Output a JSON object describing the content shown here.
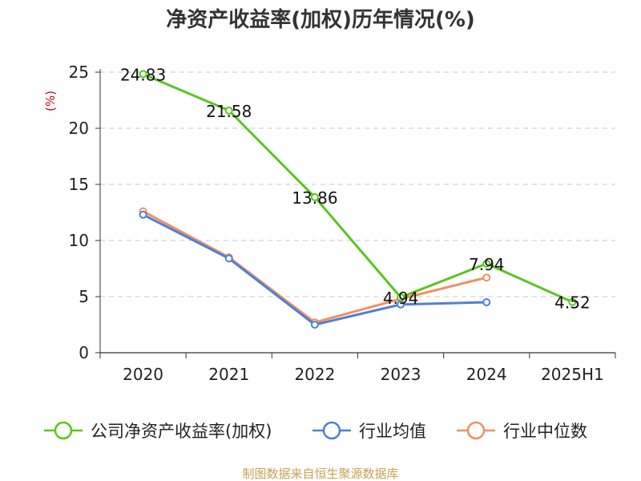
{
  "chart_data": {
    "type": "line",
    "title": "净资产收益率(加权)历年情况(%)",
    "ylabel": "(%)",
    "categories": [
      "2020",
      "2021",
      "2022",
      "2023",
      "2024",
      "2025H1"
    ],
    "ylim": [
      0,
      25
    ],
    "yticks": [
      0,
      5,
      10,
      15,
      20,
      25
    ],
    "grid": true,
    "legend_position": "bottom",
    "series": [
      {
        "name": "公司净资产收益率(加权)",
        "color": "#5cc41e",
        "values": [
          24.83,
          21.58,
          13.86,
          4.94,
          7.94,
          4.52
        ],
        "labels": [
          "24.83",
          "21.58",
          "13.86",
          "4.94",
          "7.94",
          "4.52"
        ]
      },
      {
        "name": "行业均值",
        "color": "#4f7fd8",
        "values": [
          12.3,
          8.4,
          2.5,
          4.3,
          4.5,
          null
        ]
      },
      {
        "name": "行业中位数",
        "color": "#f28f63",
        "values": [
          12.6,
          8.5,
          2.7,
          4.8,
          6.7,
          null
        ]
      }
    ]
  },
  "footer": "制图数据来自恒生聚源数据库"
}
